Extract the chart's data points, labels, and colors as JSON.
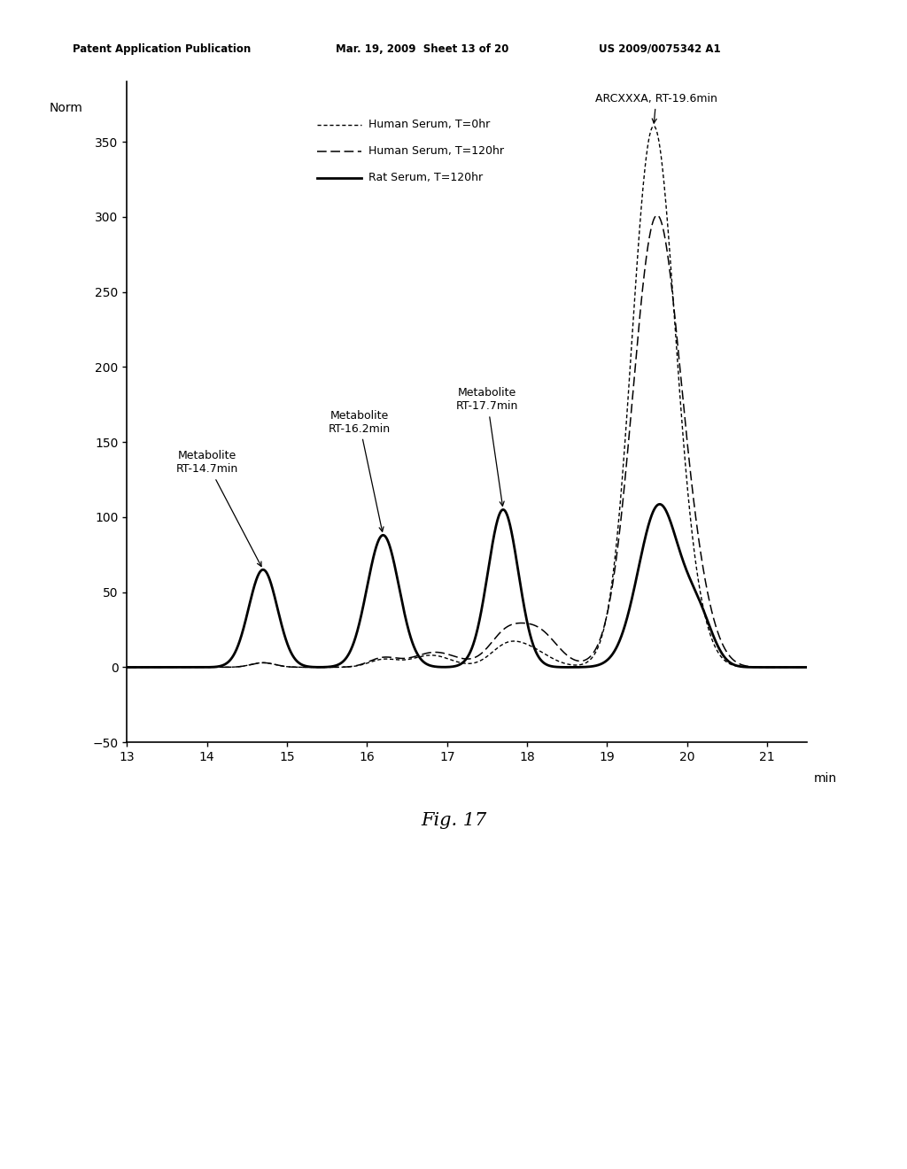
{
  "header_left": "Patent Application Publication",
  "header_mid": "Mar. 19, 2009  Sheet 13 of 20",
  "header_right": "US 2009/0075342 A1",
  "fig_label": "Fig. 17",
  "ylabel": "Norm",
  "xlabel": "min",
  "xlim": [
    13,
    21.5
  ],
  "ylim": [
    -50,
    390
  ],
  "yticks": [
    -50,
    0,
    50,
    100,
    150,
    200,
    250,
    300,
    350
  ],
  "xticks": [
    13,
    14,
    15,
    16,
    17,
    18,
    19,
    20,
    21
  ],
  "legend_entries": [
    {
      "label": "Human Serum, T=0hr"
    },
    {
      "label": "Human Serum, T=120hr"
    },
    {
      "label": "Rat Serum, T=120hr"
    }
  ],
  "background_color": "#ffffff",
  "line_color": "#000000"
}
